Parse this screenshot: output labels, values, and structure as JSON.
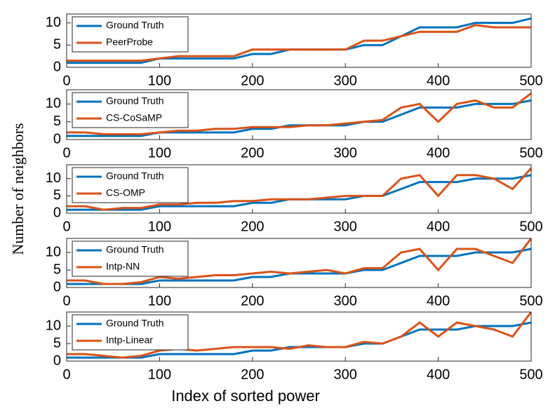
{
  "chart_data": [
    {
      "type": "line",
      "x": [
        0,
        20,
        40,
        60,
        80,
        100,
        120,
        140,
        160,
        180,
        200,
        220,
        240,
        260,
        280,
        300,
        320,
        340,
        360,
        380,
        400,
        420,
        440,
        460,
        480,
        500
      ],
      "xlim": [
        0,
        500
      ],
      "xticks": [
        0,
        100,
        200,
        300,
        400,
        500
      ],
      "ylim": [
        0,
        12
      ],
      "yticks": [
        0,
        5,
        10
      ],
      "series": [
        {
          "name": "Ground Truth",
          "color": "#0072BD",
          "values": [
            1,
            1,
            1,
            1,
            1,
            2,
            2,
            2,
            2,
            2,
            3,
            3,
            4,
            4,
            4,
            4,
            5,
            5,
            7,
            9,
            9,
            9,
            10,
            10,
            10,
            11
          ]
        },
        {
          "name": "PeerProbe",
          "color": "#D95319",
          "values": [
            1.5,
            1.5,
            1.5,
            1.5,
            1.5,
            2,
            2.5,
            2.5,
            2.5,
            2.5,
            4,
            4,
            4,
            4,
            4,
            4,
            6,
            6,
            7,
            8,
            8,
            8,
            9.5,
            9,
            9,
            9
          ]
        }
      ]
    },
    {
      "type": "line",
      "x": [
        0,
        20,
        40,
        60,
        80,
        100,
        120,
        140,
        160,
        180,
        200,
        220,
        240,
        260,
        280,
        300,
        320,
        340,
        360,
        380,
        400,
        420,
        440,
        460,
        480,
        500
      ],
      "xlim": [
        0,
        500
      ],
      "xticks": [
        0,
        100,
        200,
        300,
        400,
        500
      ],
      "ylim": [
        0,
        14
      ],
      "yticks": [
        0,
        5,
        10
      ],
      "series": [
        {
          "name": "Ground Truth",
          "color": "#0072BD",
          "values": [
            1,
            1,
            1,
            1,
            1,
            2,
            2,
            2,
            2,
            2,
            3,
            3,
            4,
            4,
            4,
            4,
            5,
            5,
            7,
            9,
            9,
            9,
            10,
            10,
            10,
            11
          ]
        },
        {
          "name": "CS-CoSaMP",
          "color": "#D95319",
          "values": [
            2,
            2,
            1.5,
            1.5,
            1.5,
            2,
            2.5,
            2.5,
            3,
            3,
            3.5,
            3.5,
            3.5,
            4,
            4,
            4.5,
            5,
            5.5,
            9,
            10,
            5,
            10,
            11,
            9,
            9,
            13
          ]
        }
      ]
    },
    {
      "type": "line",
      "x": [
        0,
        20,
        40,
        60,
        80,
        100,
        120,
        140,
        160,
        180,
        200,
        220,
        240,
        260,
        280,
        300,
        320,
        340,
        360,
        380,
        400,
        420,
        440,
        460,
        480,
        500
      ],
      "xlim": [
        0,
        500
      ],
      "xticks": [
        0,
        100,
        200,
        300,
        400,
        500
      ],
      "ylim": [
        0,
        14
      ],
      "yticks": [
        0,
        5,
        10
      ],
      "ylabel": "Number of neighbors",
      "series": [
        {
          "name": "Ground Truth",
          "color": "#0072BD",
          "values": [
            1,
            1,
            1,
            1,
            1,
            2,
            2,
            2,
            2,
            2,
            3,
            3,
            4,
            4,
            4,
            4,
            5,
            5,
            7,
            9,
            9,
            9,
            10,
            10,
            10,
            11
          ]
        },
        {
          "name": "CS-OMP",
          "color": "#D95319",
          "values": [
            2,
            2,
            1,
            1.5,
            1.5,
            2.5,
            2.5,
            3,
            3,
            3.5,
            3.5,
            4,
            4,
            4,
            4.5,
            5,
            5,
            5,
            10,
            11,
            5,
            11,
            11,
            10,
            7,
            13
          ]
        }
      ]
    },
    {
      "type": "line",
      "x": [
        0,
        20,
        40,
        60,
        80,
        100,
        120,
        140,
        160,
        180,
        200,
        220,
        240,
        260,
        280,
        300,
        320,
        340,
        360,
        380,
        400,
        420,
        440,
        460,
        480,
        500
      ],
      "xlim": [
        0,
        500
      ],
      "xticks": [
        0,
        100,
        200,
        300,
        400,
        500
      ],
      "ylim": [
        0,
        14
      ],
      "yticks": [
        0,
        5,
        10
      ],
      "series": [
        {
          "name": "Ground Truth",
          "color": "#0072BD",
          "values": [
            1,
            1,
            1,
            1,
            1,
            2,
            2,
            2,
            2,
            2,
            3,
            3,
            4,
            4,
            4,
            4,
            5,
            5,
            7,
            9,
            9,
            9,
            10,
            10,
            10,
            11
          ]
        },
        {
          "name": "Intp-NN",
          "color": "#D95319",
          "values": [
            2,
            2,
            1,
            1,
            1.5,
            3,
            2.5,
            3,
            3.5,
            3.5,
            4,
            4.5,
            4,
            4.5,
            5,
            4,
            5.5,
            5.5,
            10,
            11,
            5,
            11,
            11,
            9,
            7,
            14
          ]
        }
      ]
    },
    {
      "type": "line",
      "x": [
        0,
        20,
        40,
        60,
        80,
        100,
        120,
        140,
        160,
        180,
        200,
        220,
        240,
        260,
        280,
        300,
        320,
        340,
        360,
        380,
        400,
        420,
        440,
        460,
        480,
        500
      ],
      "xlim": [
        0,
        500
      ],
      "xticks": [
        0,
        100,
        200,
        300,
        400,
        500
      ],
      "ylim": [
        0,
        14
      ],
      "yticks": [
        0,
        5,
        10
      ],
      "xlabel": "Index of sorted power",
      "series": [
        {
          "name": "Ground Truth",
          "color": "#0072BD",
          "values": [
            1,
            1,
            1,
            1,
            1,
            2,
            2,
            2,
            2,
            2,
            3,
            3,
            4,
            4,
            4,
            4,
            5,
            5,
            7,
            9,
            9,
            9,
            10,
            10,
            10,
            11
          ]
        },
        {
          "name": "Intp-Linear",
          "color": "#D95319",
          "values": [
            2,
            2,
            1.5,
            1,
            1.5,
            3,
            3.5,
            3,
            3.5,
            4,
            4,
            4,
            3.5,
            4.5,
            4,
            4,
            5.5,
            5,
            7,
            11,
            7,
            11,
            10,
            9,
            7,
            14
          ]
        }
      ]
    }
  ]
}
